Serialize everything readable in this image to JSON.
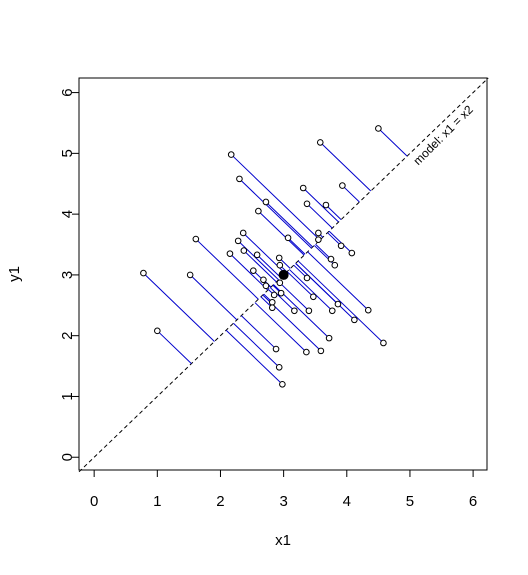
{
  "chart_data": {
    "type": "scatter",
    "xlabel": "x1",
    "ylabel": "y1",
    "annotation": "model: x1 = x2",
    "x": [
      4.5,
      3.58,
      2.17,
      3.93,
      3.31,
      2.3,
      2.72,
      3.37,
      3.67,
      2.6,
      3.55,
      2.36,
      3.55,
      1.61,
      3.07,
      2.28,
      3.91,
      4.08,
      2.37,
      2.58,
      2.15,
      3.75,
      2.93,
      3.81,
      2.94,
      2.52,
      0.78,
      1.52,
      3.37,
      2.68,
      2.94,
      2.72,
      2.85,
      2.96,
      3.47,
      2.82,
      3.86,
      2.82,
      4.34,
      3.17,
      3.4,
      3.77,
      4.12,
      1.0,
      3.72,
      2.88,
      3.36,
      3.59,
      4.58,
      2.93,
      2.98
    ],
    "y": [
      5.41,
      5.18,
      4.98,
      4.47,
      4.43,
      4.58,
      4.2,
      4.17,
      4.15,
      4.05,
      3.69,
      3.69,
      3.58,
      3.59,
      3.61,
      3.56,
      3.48,
      3.36,
      3.4,
      3.33,
      3.35,
      3.26,
      3.28,
      3.16,
      3.16,
      3.07,
      3.03,
      3.0,
      2.95,
      2.92,
      2.87,
      2.82,
      2.67,
      2.7,
      2.64,
      2.55,
      2.52,
      2.46,
      2.42,
      2.41,
      2.41,
      2.41,
      2.26,
      2.08,
      1.96,
      1.78,
      1.73,
      1.75,
      1.88,
      1.48,
      1.2
    ],
    "center": {
      "x": 3,
      "y": 3
    },
    "segment_color": "#0000cc",
    "xlim": [
      -0.24,
      6.22
    ],
    "ylim": [
      -0.21,
      6.24
    ],
    "xticks": [
      0,
      1,
      2,
      3,
      4,
      5,
      6
    ],
    "yticks": [
      0,
      1,
      2,
      3,
      4,
      5,
      6
    ]
  }
}
